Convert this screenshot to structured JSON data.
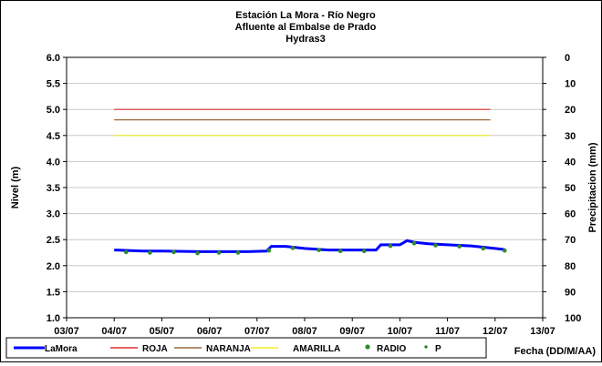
{
  "chart_data": {
    "type": "line",
    "title": [
      "Estación La Mora - Río Negro",
      "Afluente al Embalse de Prado",
      "Hydras3"
    ],
    "ylabel": "Nivel (m)",
    "y2label": "Precipitacion (mm)",
    "xlabel": "Fecha (DD/M/AA)",
    "x_ticks": [
      "03/07",
      "04/07",
      "05/07",
      "06/07",
      "07/07",
      "08/07",
      "09/07",
      "10/07",
      "11/07",
      "12/07",
      "13/07"
    ],
    "ylim": [
      1.0,
      6.0
    ],
    "y_ticks": [
      "1.0",
      "1.5",
      "2.0",
      "2.5",
      "3.0",
      "3.5",
      "4.0",
      "4.5",
      "5.0",
      "5.5",
      "6.0"
    ],
    "y2lim": [
      0,
      100
    ],
    "y2_inverted": true,
    "y2_ticks": [
      "0",
      "10",
      "20",
      "30",
      "40",
      "50",
      "60",
      "70",
      "80",
      "90",
      "100"
    ],
    "grid": "horizontal",
    "legend_position": "bottom",
    "series": [
      {
        "name": "LaMora",
        "kind": "line",
        "color": "#0000ff",
        "x": [
          1.0,
          1.6,
          2.0,
          2.8,
          3.0,
          3.8,
          4.2,
          4.3,
          4.6,
          5.0,
          5.5,
          5.9,
          6.0,
          6.5,
          6.6,
          7.0,
          7.15,
          7.3,
          7.6,
          8.0,
          8.5,
          9.0,
          9.2
        ],
        "y": [
          2.3,
          2.28,
          2.28,
          2.27,
          2.27,
          2.27,
          2.28,
          2.37,
          2.37,
          2.33,
          2.3,
          2.3,
          2.3,
          2.3,
          2.4,
          2.4,
          2.48,
          2.45,
          2.42,
          2.4,
          2.38,
          2.33,
          2.31
        ]
      },
      {
        "name": "ROJA",
        "kind": "line",
        "color": "#e03030",
        "x": [
          1.0,
          8.9
        ],
        "y": [
          5.0,
          5.0
        ]
      },
      {
        "name": "NARANJA",
        "kind": "line",
        "color": "#9c6a3a",
        "x": [
          1.0,
          8.9
        ],
        "y": [
          4.8,
          4.8
        ]
      },
      {
        "name": "AMARILLA",
        "kind": "line",
        "color": "#f0f020",
        "x": [
          1.0,
          8.9
        ],
        "y": [
          4.5,
          4.5
        ]
      },
      {
        "name": "RADIO",
        "kind": "points",
        "color": "#2e8b2e",
        "x": [
          1.25,
          1.75,
          2.25,
          2.75,
          3.2,
          3.6,
          4.25,
          4.75,
          5.3,
          5.75,
          6.25,
          6.8,
          7.3,
          7.75,
          8.25,
          8.75,
          9.2
        ],
        "y": [
          2.26,
          2.25,
          2.26,
          2.24,
          2.25,
          2.25,
          2.29,
          2.34,
          2.3,
          2.28,
          2.28,
          2.38,
          2.43,
          2.39,
          2.37,
          2.33,
          2.29
        ]
      },
      {
        "name": "P",
        "kind": "points",
        "color": "#1a7a1a",
        "x": [],
        "y": []
      }
    ]
  }
}
